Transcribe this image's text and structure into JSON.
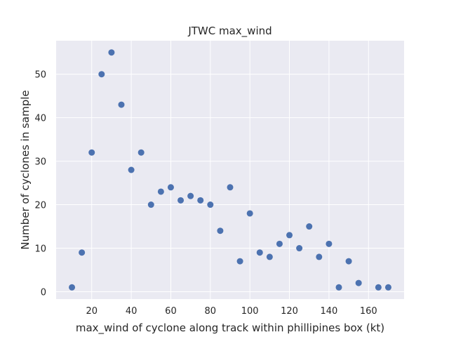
{
  "chart_data": {
    "type": "scatter",
    "title": "JTWC max_wind",
    "xlabel": "max_wind of cyclone along track within phillipines box (kt)",
    "ylabel": "Number of cyclones in sample",
    "xlim": [
      2,
      178
    ],
    "ylim": [
      -1.7,
      57.7
    ],
    "xticks": [
      20,
      40,
      60,
      80,
      100,
      120,
      140,
      160
    ],
    "yticks": [
      0,
      10,
      20,
      30,
      40,
      50
    ],
    "grid": true,
    "marker_color": "#4c72b0",
    "background_color": "#eaeaf2",
    "series": [
      {
        "x": [
          10,
          15,
          20,
          25,
          30,
          35,
          40,
          45,
          50,
          55,
          60,
          65,
          70,
          75,
          80,
          85,
          90,
          95,
          100,
          105,
          110,
          115,
          120,
          125,
          130,
          135,
          140,
          145,
          150,
          155,
          165,
          170
        ],
        "y": [
          1,
          9,
          32,
          50,
          55,
          43,
          28,
          32,
          20,
          23,
          24,
          21,
          22,
          21,
          20,
          14,
          24,
          7,
          18,
          9,
          8,
          11,
          13,
          10,
          15,
          8,
          11,
          1,
          7,
          2,
          1,
          1
        ]
      }
    ]
  }
}
